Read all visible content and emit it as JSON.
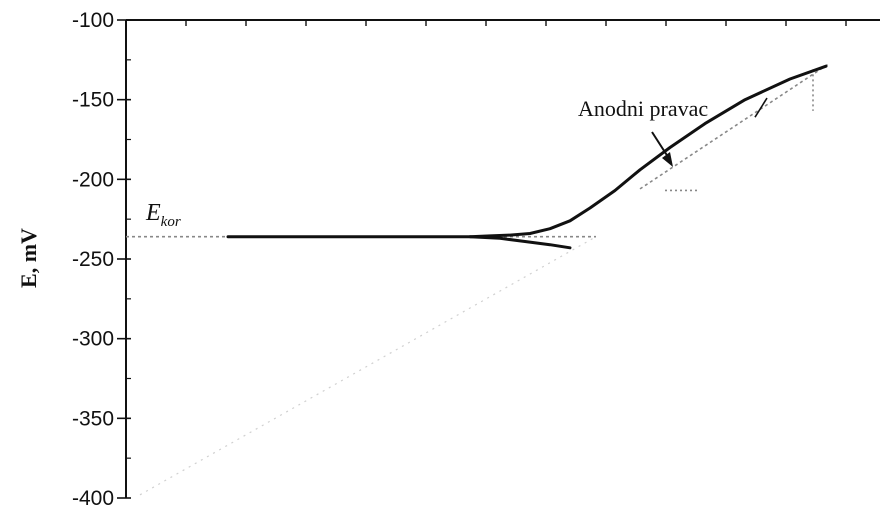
{
  "chart_data": {
    "type": "line",
    "title": "",
    "xlabel": "",
    "ylabel": "E, mV",
    "ylim": [
      -400,
      -100
    ],
    "yticks": [
      -100,
      -150,
      -200,
      -250,
      -300,
      -350,
      -400
    ],
    "grid": false,
    "log_x": true,
    "x_tick_labels_visible": false,
    "colors": {
      "curve": "#111111",
      "tangent": "#888888",
      "axis": "#111111"
    },
    "series": [
      {
        "role": "anodic-branch",
        "values": [
          -236,
          -236,
          -236,
          -236,
          -236,
          -236,
          -236,
          -235.5,
          -235,
          -234,
          -231,
          -226,
          -218,
          -207,
          -194,
          -180,
          -165,
          -150,
          -137,
          -129
        ]
      },
      {
        "role": "cathodic-branch",
        "values": [
          -236,
          -237,
          -239,
          -241,
          -243
        ]
      }
    ],
    "annotations": {
      "e_corr": {
        "main": "E",
        "sub": "kor"
      },
      "anodic_label": "Anodni pravac"
    }
  }
}
